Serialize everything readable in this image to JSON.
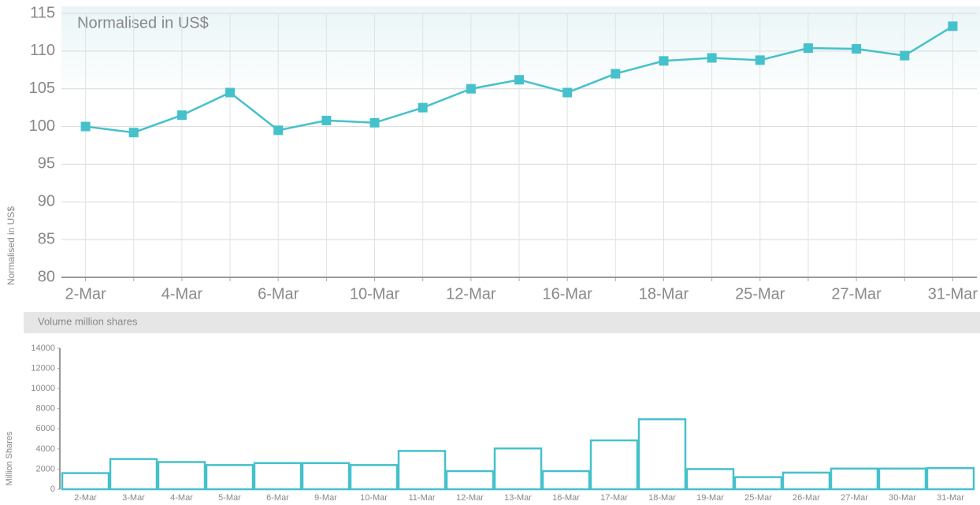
{
  "chart_data": [
    {
      "type": "line",
      "title": "Normalised in US$",
      "ylabel": "Normalised in US$",
      "categories": [
        "2-Mar",
        null,
        "4-Mar",
        null,
        "6-Mar",
        null,
        "10-Mar",
        null,
        "12-Mar",
        null,
        "16-Mar",
        null,
        "18-Mar",
        null,
        "25-Mar",
        null,
        "27-Mar",
        null,
        "31-Mar"
      ],
      "series": [
        {
          "color": "#45c1cc",
          "values": [
            100,
            99.2,
            101.5,
            104.5,
            99.5,
            100.8,
            100.5,
            102.5,
            105,
            106.2,
            104.5,
            107,
            108.7,
            109.1,
            108.8,
            110.4,
            110.3,
            109.4,
            113.3
          ]
        }
      ],
      "ylim": [
        80,
        115
      ],
      "yticks": [
        80,
        85,
        90,
        95,
        100,
        105,
        110,
        115
      ],
      "grid": true
    },
    {
      "type": "bar",
      "title": "Volume million shares",
      "ylabel": "Million Shares",
      "categories": [
        "2-Mar",
        "3-Mar",
        "4-Mar",
        "5-Mar",
        "6-Mar",
        "9-Mar",
        "10-Mar",
        "11-Mar",
        "12-Mar",
        "13-Mar",
        "16-Mar",
        "17-Mar",
        "18-Mar",
        "19-Mar",
        "25-Mar",
        "26-Mar",
        "27-Mar",
        "30-Mar",
        "31-Mar"
      ],
      "values": [
        1600,
        3000,
        2700,
        2400,
        2600,
        2600,
        2400,
        3800,
        1800,
        4050,
        1800,
        4850,
        6950,
        2000,
        1200,
        1650,
        2050,
        2050,
        2100
      ],
      "color": "#45c1cc",
      "ylim": [
        0,
        14000
      ],
      "yticks": [
        0,
        2000,
        4000,
        6000,
        8000,
        10000,
        12000,
        14000
      ],
      "grid": false
    }
  ]
}
